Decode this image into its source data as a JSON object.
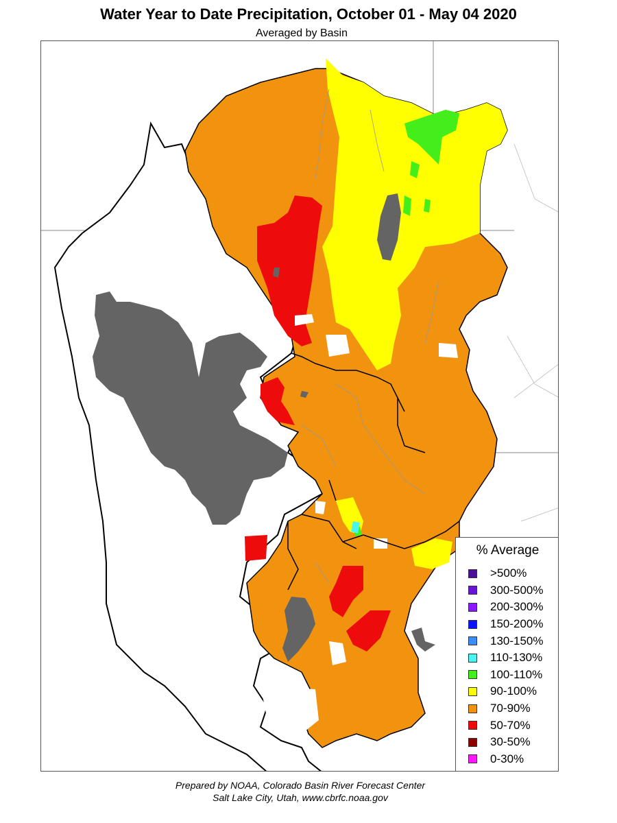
{
  "title": "Water Year to Date Precipitation, October 01  - May 04 2020",
  "subtitle": "Averaged by Basin",
  "legend": {
    "title": "% Average",
    "items": [
      {
        "label": ">500%",
        "color": "#4b0f9a"
      },
      {
        "label": "300-500%",
        "color": "#6a12d9"
      },
      {
        "label": "200-300%",
        "color": "#8a18ff"
      },
      {
        "label": "150-200%",
        "color": "#0a14ff"
      },
      {
        "label": "130-150%",
        "color": "#3a8ef6"
      },
      {
        "label": "110-130%",
        "color": "#48f7f2"
      },
      {
        "label": "100-110%",
        "color": "#44ee1a"
      },
      {
        "label": "90-100%",
        "color": "#ffff00"
      },
      {
        "label": "70-90%",
        "color": "#f2930f"
      },
      {
        "label": "50-70%",
        "color": "#ee0b0b"
      },
      {
        "label": "30-50%",
        "color": "#8b0000"
      },
      {
        "label": "0-30%",
        "color": "#ff18ff"
      }
    ]
  },
  "colors": {
    "water": "#646464",
    "basin_outline": "#000000",
    "state_line": "#888888"
  },
  "credit": {
    "line1": "Prepared by NOAA, Colorado Basin River Forecast Center",
    "line2": "Salt Lake City, Utah, www.cbrfc.noaa.gov"
  }
}
